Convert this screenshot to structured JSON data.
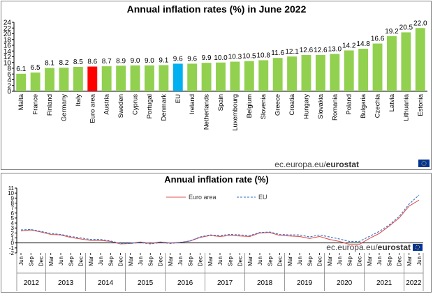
{
  "source": {
    "domain": "ec.europa.eu/",
    "brand": "eurostat"
  },
  "chart_data": [
    {
      "type": "bar",
      "title": "Annual inflation rates (%) in June 2022",
      "categories": [
        "Malta",
        "France",
        "Finland",
        "Germany",
        "Italy",
        "Euro area",
        "Austria",
        "Sweden",
        "Cyprus",
        "Portugal",
        "Denmark",
        "EU",
        "Ireland",
        "Netherlands",
        "Spain",
        "Luxembourg",
        "Belgium",
        "Slovenia",
        "Greece",
        "Croatia",
        "Hungary",
        "Slovakia",
        "Romania",
        "Poland",
        "Bulgaria",
        "Czechia",
        "Latvia",
        "Lithuania",
        "Estonia"
      ],
      "values": [
        6.1,
        6.5,
        8.1,
        8.2,
        8.5,
        8.6,
        8.7,
        8.9,
        9.0,
        9.0,
        9.1,
        9.6,
        9.6,
        9.9,
        10.0,
        10.3,
        10.5,
        10.8,
        11.6,
        12.1,
        12.6,
        12.6,
        13.0,
        14.2,
        14.8,
        16.6,
        19.2,
        20.5,
        22.0
      ],
      "value_labels": [
        "6.1",
        "6.5",
        "8.1",
        "8.2",
        "8.5",
        "8.6",
        "8.7",
        "8.9",
        "9.0",
        "9.0",
        "9.1",
        "9.6",
        "9.6",
        "9.9",
        "10.0",
        "10.3",
        "10.5",
        "10.8",
        "11.6",
        "12.1",
        "12.6",
        "12.6",
        "13.0",
        "14.2",
        "14.8",
        "16.6",
        "19.2",
        "20.5",
        "22.0"
      ],
      "yticks": [
        "0",
        "2",
        "4",
        "6",
        "8",
        "10",
        "12",
        "14",
        "16",
        "18",
        "20",
        "22",
        "24"
      ],
      "ylim": [
        0,
        24
      ],
      "colors": {
        "default": "#92d050",
        "euro_area": "#ff0000",
        "eu": "#00b0f0"
      },
      "highlight": {
        "Euro area": "#ff0000",
        "EU": "#00b0f0"
      }
    },
    {
      "type": "line",
      "title": "Annual inflation rate (%)",
      "months": [
        "Jun",
        "Sep",
        "Dec",
        "Mar",
        "Jun",
        "Sep",
        "Dec",
        "Mar",
        "Jun",
        "Sep",
        "Dec",
        "Mar",
        "Jun",
        "Sep",
        "Dec",
        "Mar",
        "Jun",
        "Sep",
        "Dec",
        "Mar",
        "Jun",
        "Sep",
        "Dec",
        "Mar",
        "Jun",
        "Sep",
        "Dec",
        "Mar",
        "Jun",
        "Sep",
        "Dec",
        "Mar",
        "Jun",
        "Sep",
        "Dec",
        "Mar",
        "Jun",
        "Sep",
        "Dec",
        "Mar",
        "Jun"
      ],
      "years": [
        "2012",
        "2013",
        "2014",
        "2015",
        "2016",
        "2017",
        "2018",
        "2019",
        "2020",
        "2021",
        "2022"
      ],
      "yticks": [
        "-2",
        "-1",
        "0",
        "1",
        "2",
        "3",
        "4",
        "5",
        "6",
        "7",
        "8",
        "9",
        "10",
        "11"
      ],
      "ylim": [
        -2,
        11
      ],
      "legend": "top-center",
      "series": [
        {
          "name": "Euro area",
          "color": "#e05050",
          "dash": "solid",
          "values": [
            2.4,
            2.6,
            2.2,
            1.7,
            1.6,
            1.1,
            0.8,
            0.5,
            0.5,
            0.3,
            -0.2,
            -0.1,
            0.2,
            -0.1,
            0.2,
            0.0,
            0.1,
            0.4,
            1.1,
            1.5,
            1.3,
            1.5,
            1.4,
            1.3,
            2.0,
            2.1,
            1.5,
            1.4,
            1.3,
            0.9,
            1.3,
            0.7,
            0.3,
            -0.3,
            -0.3,
            0.9,
            1.9,
            3.4,
            5.0,
            7.4,
            8.6
          ]
        },
        {
          "name": "EU",
          "color": "#2f6fc0",
          "dash": "dashed",
          "values": [
            2.6,
            2.7,
            2.3,
            1.9,
            1.7,
            1.3,
            1.0,
            0.7,
            0.7,
            0.4,
            -0.1,
            -0.1,
            0.1,
            -0.2,
            0.1,
            -0.1,
            0.1,
            0.4,
            1.2,
            1.6,
            1.5,
            1.7,
            1.6,
            1.5,
            2.1,
            2.2,
            1.7,
            1.6,
            1.6,
            1.2,
            1.6,
            1.2,
            0.8,
            0.3,
            0.3,
            1.3,
            2.3,
            3.6,
            5.3,
            7.8,
            9.6
          ]
        }
      ]
    }
  ]
}
